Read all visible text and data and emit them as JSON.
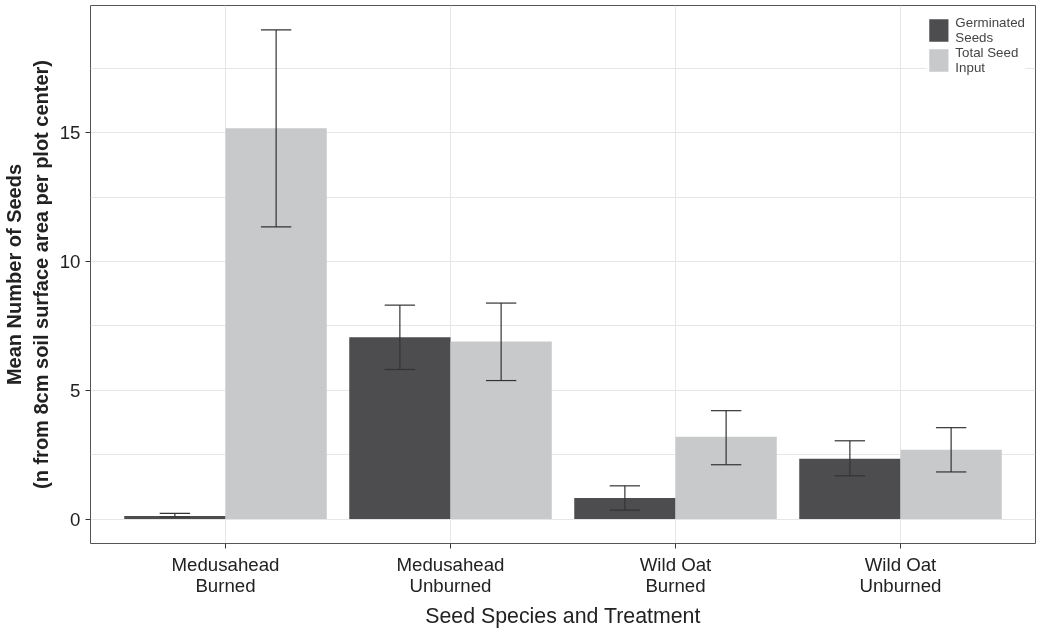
{
  "chart_data": {
    "type": "bar",
    "xlabel": "Seed Species and Treatment",
    "ylabel": "Mean Number of Seeds\n(n from 8cm soil surface area per plot center)",
    "categories": [
      "Medusahead\nBurned",
      "Medusahead\nUnburned",
      "Wild Oat\nBurned",
      "Wild Oat\nUnburned"
    ],
    "series": [
      {
        "name": "Germinated\nSeeds",
        "color": "#4d4d4f",
        "values": [
          0.12,
          7.06,
          0.82,
          2.34
        ],
        "errors": [
          [
            0.08,
            0.22
          ],
          [
            5.81,
            8.31
          ],
          [
            0.35,
            1.29
          ],
          [
            1.68,
            3.04
          ]
        ]
      },
      {
        "name": "Total Seed\nInput",
        "color": "#c8c9cb",
        "values": [
          15.18,
          6.9,
          3.2,
          2.69
        ],
        "errors": [
          [
            11.35,
            19.0
          ],
          [
            5.38,
            8.39
          ],
          [
            2.11,
            4.21
          ],
          [
            1.83,
            3.55
          ]
        ]
      }
    ],
    "ylim": [
      -0.95,
      19.95
    ],
    "yticks": [
      0,
      {
        "value": 2.5,
        "label": null
      },
      5,
      {
        "value": 7.5,
        "label": null
      },
      10,
      {
        "value": 12.5,
        "label": null
      },
      15,
      {
        "value": 17.5,
        "label": null
      }
    ],
    "grid": true,
    "legend": "top right"
  }
}
